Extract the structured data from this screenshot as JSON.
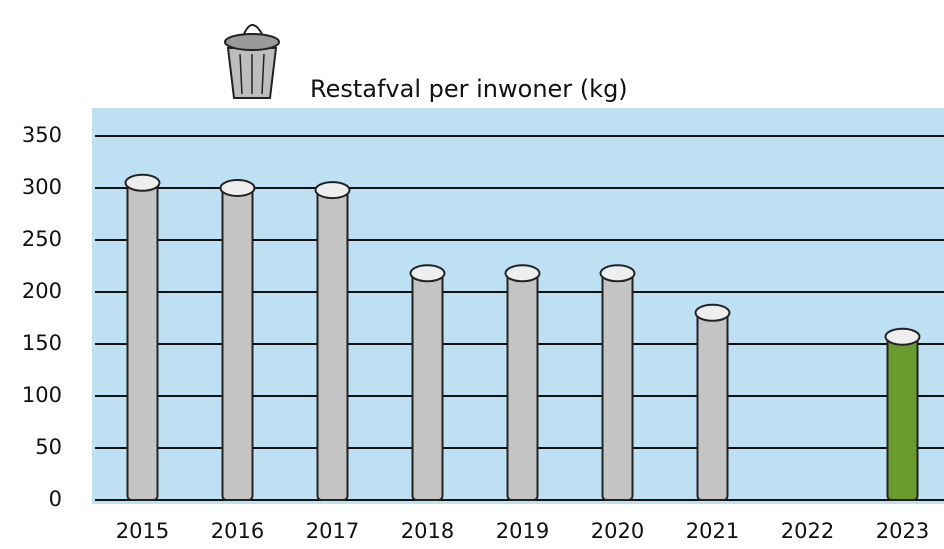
{
  "chart_data": {
    "type": "bar",
    "title": "Restafval per inwoner (kg)",
    "categories": [
      "2015",
      "2016",
      "2017",
      "2018",
      "2019",
      "2020",
      "2021",
      "2022",
      "2023"
    ],
    "values": [
      305,
      300,
      298,
      218,
      218,
      218,
      180,
      null,
      157
    ],
    "colors": [
      "#c4c4c4",
      "#c4c4c4",
      "#c4c4c4",
      "#c4c4c4",
      "#c4c4c4",
      "#c4c4c4",
      "#c4c4c4",
      "#c4c4c4",
      "#6b9b2c"
    ],
    "ylim": [
      0,
      350
    ],
    "yticks": [
      0,
      50,
      100,
      150,
      200,
      250,
      300,
      350
    ],
    "grid": true
  }
}
